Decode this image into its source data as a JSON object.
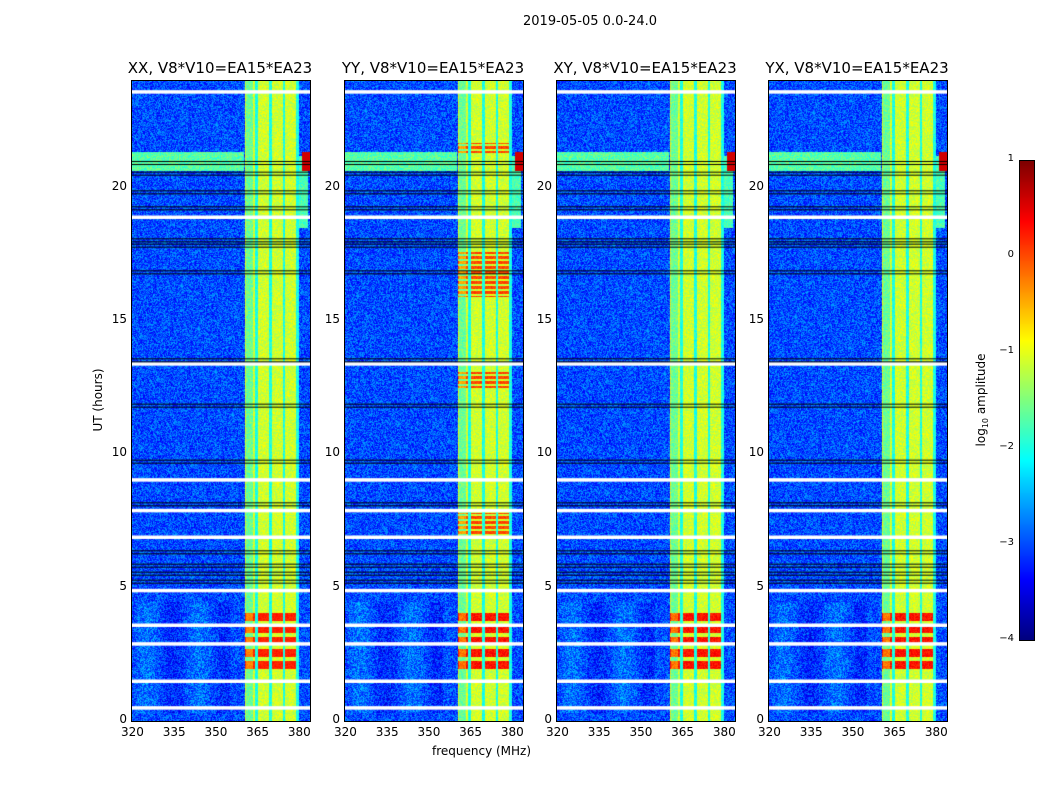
{
  "chart_data": {
    "type": "heatmap",
    "title": "2019-05-05 0.0-24.0",
    "xlabel": "frequency (MHz)",
    "ylabel": "UT (hours)",
    "xlim": [
      320,
      384
    ],
    "ylim": [
      0,
      24
    ],
    "xticks": [
      "320",
      "335",
      "350",
      "365",
      "380"
    ],
    "xtick_values": [
      320,
      335,
      350,
      365,
      380
    ],
    "yticks": [
      "0",
      "5",
      "10",
      "15",
      "20"
    ],
    "ytick_values": [
      0,
      5,
      10,
      15,
      20
    ],
    "panels": [
      {
        "title": "XX, V8*V10=EA15*EA23"
      },
      {
        "title": "YY, V8*V10=EA15*EA23"
      },
      {
        "title": "XY, V8*V10=EA15*EA23"
      },
      {
        "title": "YX, V8*V10=EA15*EA23"
      }
    ],
    "colorbar": {
      "label_main": "log",
      "label_sub": "10",
      "label_rest": " amplitude",
      "range": [
        -4,
        1
      ],
      "ticks": [
        "1",
        "0",
        "−1",
        "−2",
        "−3",
        "−4"
      ],
      "tick_values": [
        1,
        0,
        -1,
        -2,
        -3,
        -4
      ],
      "colormap": "jet"
    },
    "background_level": -3,
    "rfi_band_mhz": [
      360.5,
      380
    ],
    "band_level": -1.1,
    "strong_rfi_hours": [
      1.8,
      4.2
    ],
    "flagged_hours_white": [
      23.6,
      18.9,
      13.4,
      9.05,
      7.9,
      6.9,
      4.9,
      3.6,
      2.9,
      1.5,
      0.5
    ],
    "flagged_hours_black": [
      21.0,
      20.6,
      19.9,
      19.3,
      18.1,
      17.9,
      16.9,
      13.6,
      11.9,
      9.8,
      8.2,
      6.4,
      5.9,
      5.6,
      5.3
    ]
  }
}
